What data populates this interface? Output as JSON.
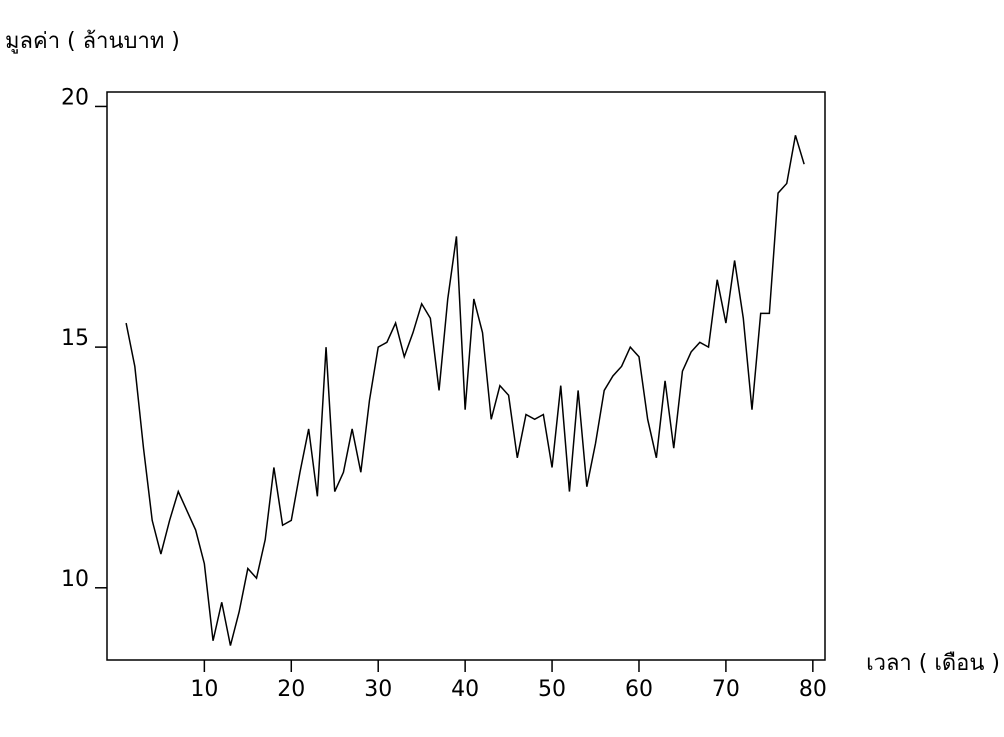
{
  "chart_data": {
    "type": "line",
    "y_label": "มูลค่า ( ล้านบาท )",
    "x_label": "เวลา ( เดือน )",
    "x": [
      1,
      2,
      3,
      4,
      5,
      6,
      7,
      8,
      9,
      10,
      11,
      12,
      13,
      14,
      15,
      16,
      17,
      18,
      19,
      20,
      21,
      22,
      23,
      24,
      25,
      26,
      27,
      28,
      29,
      30,
      31,
      32,
      33,
      34,
      35,
      36,
      37,
      38,
      39,
      40,
      41,
      42,
      43,
      44,
      45,
      46,
      47,
      48,
      49,
      50,
      51,
      52,
      53,
      54,
      55,
      56,
      57,
      58,
      59,
      60,
      61,
      62,
      63,
      64,
      65,
      66,
      67,
      68,
      69,
      70,
      71,
      72,
      73,
      74,
      75,
      76,
      77,
      78,
      79
    ],
    "values": [
      15.5,
      14.6,
      12.9,
      11.4,
      10.7,
      11.4,
      12.0,
      11.6,
      11.2,
      10.5,
      8.9,
      9.7,
      8.8,
      9.5,
      10.4,
      10.2,
      11.0,
      12.5,
      11.3,
      11.4,
      12.4,
      13.3,
      11.9,
      15.0,
      12.0,
      12.4,
      13.3,
      12.4,
      13.9,
      15.0,
      15.1,
      15.5,
      14.8,
      15.3,
      15.9,
      15.6,
      14.1,
      16.0,
      17.3,
      13.7,
      16.0,
      15.3,
      13.5,
      14.2,
      14.0,
      12.7,
      13.6,
      13.5,
      13.6,
      12.5,
      14.2,
      12.0,
      14.1,
      12.1,
      13.0,
      14.1,
      14.4,
      14.6,
      15.0,
      14.8,
      13.5,
      12.7,
      14.3,
      12.9,
      14.5,
      14.9,
      15.1,
      15.0,
      16.4,
      15.5,
      16.8,
      15.6,
      13.7,
      15.7,
      15.7,
      18.2,
      18.4,
      19.4,
      18.8
    ],
    "color": "#000000",
    "xlim": [
      -1.2,
      81.4
    ],
    "xticks": [
      10,
      20,
      30,
      40,
      50,
      60,
      70,
      80
    ],
    "ylim": [
      8.5,
      20.3
    ],
    "yticks": [
      10,
      15,
      20
    ]
  }
}
